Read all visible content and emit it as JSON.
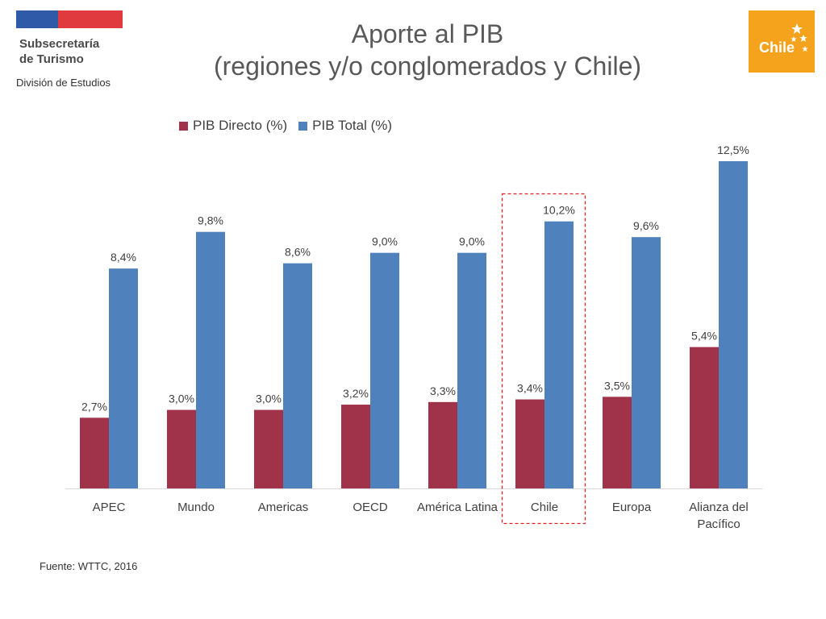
{
  "header": {
    "org_line1": "Subsecretaría",
    "org_line2": "de Turismo",
    "division": "División de Estudios",
    "brand": "Chile"
  },
  "title_lines": [
    "Aporte al PIB",
    "(regiones y/o conglomerados y Chile)"
  ],
  "source": "Fuente: WTTC, 2016",
  "colors": {
    "directo": "#a0334a",
    "total": "#4f81bd",
    "highlight": "#e02020",
    "brand": "#f5a31c"
  },
  "chart_data": {
    "type": "bar",
    "categories": [
      "APEC",
      "Mundo",
      "Americas",
      "OECD",
      "América Latina",
      "Chile",
      "Europa",
      "Alianza del Pacífico"
    ],
    "series": [
      {
        "name": "PIB Directo (%)",
        "values": [
          2.7,
          3.0,
          3.0,
          3.2,
          3.3,
          3.4,
          3.5,
          5.4
        ],
        "labels": [
          "2,7%",
          "3,0%",
          "3,0%",
          "3,2%",
          "3,3%",
          "3,4%",
          "3,5%",
          "5,4%"
        ]
      },
      {
        "name": "PIB Total (%)",
        "values": [
          8.4,
          9.8,
          8.6,
          9.0,
          9.0,
          10.2,
          9.6,
          12.5
        ],
        "labels": [
          "8,4%",
          "9,8%",
          "8,6%",
          "9,0%",
          "9,0%",
          "10,2%",
          "9,6%",
          "12,5%"
        ]
      }
    ],
    "highlighted_category": "Chile",
    "ylim": [
      0,
      12.5
    ],
    "grid": false,
    "legend_position": "top-left"
  }
}
